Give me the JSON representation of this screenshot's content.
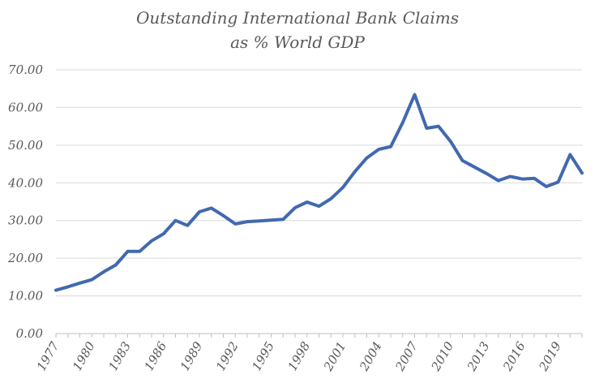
{
  "chart_data": {
    "type": "line",
    "title_lines": [
      "Outstanding International Bank Claims",
      "as % World GDP"
    ],
    "xlabel": "",
    "ylabel": "",
    "ylim": [
      0,
      70
    ],
    "yticks": [
      "0.00",
      "10.00",
      "20.00",
      "30.00",
      "40.00",
      "50.00",
      "60.00",
      "70.00"
    ],
    "xlim": [
      1977,
      2021
    ],
    "xticks": [
      "1977",
      "1980",
      "1983",
      "1986",
      "1989",
      "1992",
      "1995",
      "1998",
      "2001",
      "2004",
      "2007",
      "2010",
      "2013",
      "2016",
      "2019"
    ],
    "grid": true,
    "legend": "none",
    "line_color": "#4169b0",
    "series": [
      {
        "x": [
          1977,
          1978,
          1979,
          1980,
          1981,
          1982,
          1983,
          1984,
          1985,
          1986,
          1987,
          1988,
          1989,
          1990,
          1991,
          1992,
          1993,
          1994,
          1995,
          1996,
          1997,
          1998,
          1999,
          2000,
          2001,
          2002,
          2003,
          2004,
          2005,
          2006,
          2007,
          2008,
          2009,
          2010,
          2011,
          2012,
          2013,
          2014,
          2015,
          2016,
          2017,
          2018,
          2019,
          2020,
          2021
        ],
        "values": [
          11.5,
          12.4,
          13.4,
          14.3,
          16.4,
          18.2,
          21.8,
          21.8,
          24.6,
          26.5,
          30.0,
          28.7,
          32.3,
          33.3,
          31.3,
          29.1,
          29.7,
          29.9,
          30.1,
          30.3,
          33.4,
          34.9,
          33.8,
          35.8,
          38.8,
          43.0,
          46.6,
          48.9,
          49.6,
          56.0,
          63.4,
          54.5,
          55.0,
          51.0,
          45.9,
          44.2,
          42.5,
          40.6,
          41.7,
          41.0,
          41.2,
          39.0,
          40.2,
          47.5,
          42.6
        ]
      }
    ]
  }
}
